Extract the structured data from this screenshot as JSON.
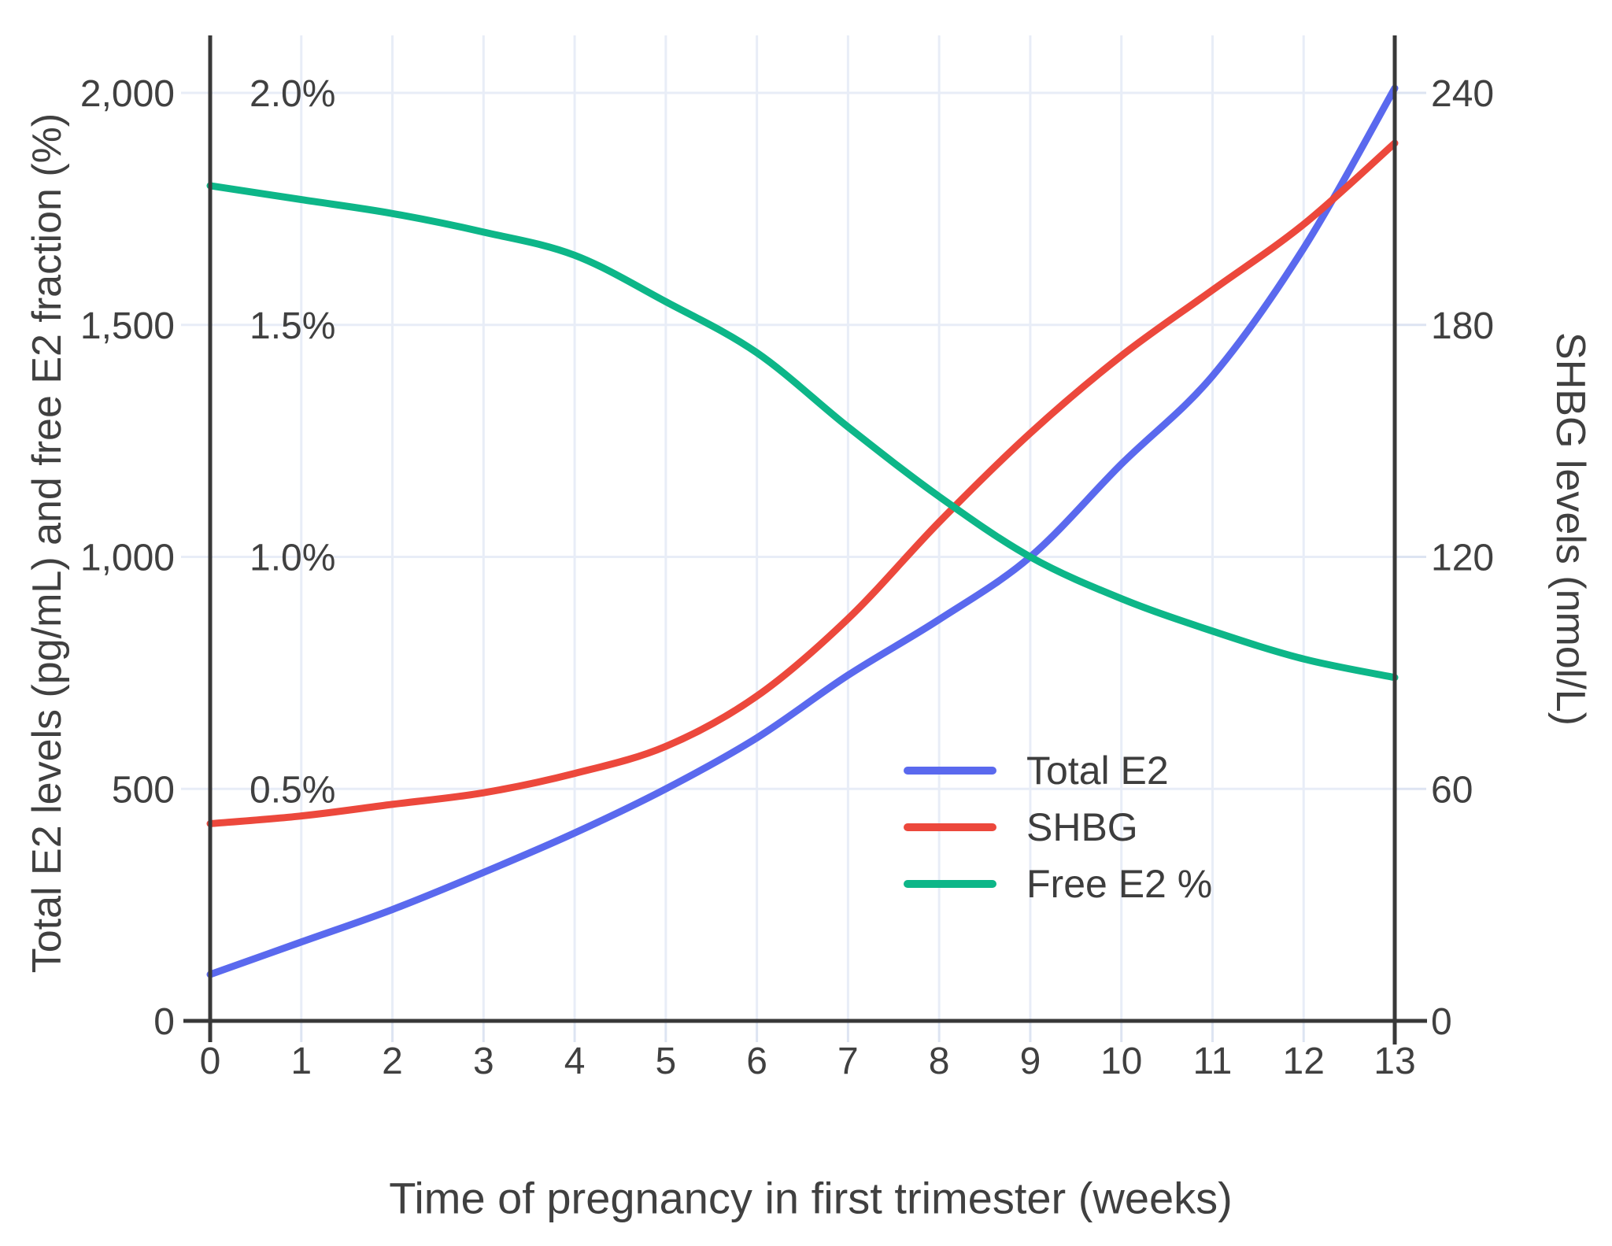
{
  "chart_data": {
    "type": "line",
    "x": [
      0,
      1,
      2,
      3,
      4,
      5,
      6,
      7,
      8,
      9,
      10,
      11,
      12,
      13
    ],
    "series": [
      {
        "name": "Total E2",
        "unit": "pg/mL",
        "axis": "left",
        "color": "#5a69ee",
        "values": [
          100,
          170,
          240,
          320,
          405,
          500,
          610,
          745,
          865,
          1000,
          1200,
          1390,
          1665,
          2010
        ]
      },
      {
        "name": "SHBG",
        "unit": "nmol/L",
        "axis": "right",
        "color": "#ec483c",
        "values": [
          51,
          53,
          56,
          59,
          64,
          71,
          84,
          104,
          129,
          152,
          172,
          189,
          206,
          227
        ]
      },
      {
        "name": "Free E2 %",
        "unit": "%",
        "axis": "left-percent",
        "color": "#0db688",
        "values": [
          1.8,
          1.77,
          1.74,
          1.7,
          1.65,
          1.55,
          1.44,
          1.28,
          1.13,
          1.0,
          0.91,
          0.84,
          0.78,
          0.74
        ]
      }
    ],
    "title": "",
    "xlabel": "Time of pregnancy in first trimester (weeks)",
    "ylabel_left": "Total E2 levels (pg/mL) and free E2 fraction (%)",
    "ylabel_right": "SHBG levels (nmol/L)",
    "xlim": [
      0,
      13
    ],
    "ylim_left": [
      0,
      2000
    ],
    "ylim_left_percent": [
      0,
      2.0
    ],
    "ylim_right": [
      0,
      240
    ],
    "x_ticks": [
      "0",
      "1",
      "2",
      "3",
      "4",
      "5",
      "6",
      "7",
      "8",
      "9",
      "10",
      "11",
      "12",
      "13"
    ],
    "y_ticks_left": [
      "0",
      "500",
      "1,000",
      "1,500",
      "2,000"
    ],
    "y_ticks_left_values": [
      0,
      500,
      1000,
      1500,
      2000
    ],
    "y_ticks_left_percent": [
      "0.5%",
      "1.0%",
      "1.5%",
      "2.0%"
    ],
    "y_ticks_left_percent_values": [
      0.5,
      1.0,
      1.5,
      2.0
    ],
    "y_ticks_right": [
      "0",
      "60",
      "120",
      "180",
      "240"
    ],
    "y_ticks_right_values": [
      0,
      60,
      120,
      180,
      240
    ],
    "grid": true,
    "legend_position": "inside-right-middle",
    "colors": {
      "gridline": "#e8edf7",
      "tick_stub": "#dde4f2",
      "axis_line": "#383838",
      "text": "#404040"
    }
  }
}
